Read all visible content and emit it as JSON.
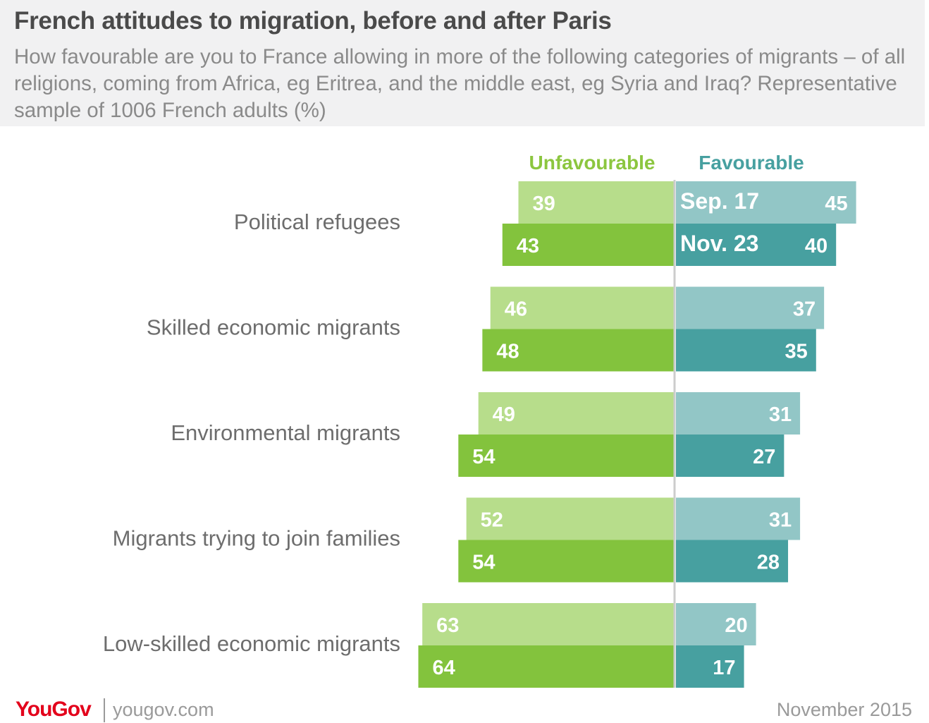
{
  "header": {
    "title": "French attitudes to migration, before and after Paris",
    "subtitle": "How favourable are you to France allowing in more of the following categories of migrants – of all religions, coming from Africa, eg Eritrea, and the middle east, eg Syria and Iraq? Representative sample of 1006 French adults (%)"
  },
  "footer": {
    "brand": "YouGov",
    "url": "yougov.com",
    "date": "November 2015"
  },
  "chart_data": {
    "type": "bar",
    "orientation": "diverging-horizontal",
    "headings": {
      "left": "Unfavourable",
      "right": "Favourable"
    },
    "series_labels": [
      "Sep. 17",
      "Nov. 23"
    ],
    "categories": [
      "Political refugees",
      "Skilled economic migrants",
      "Environmental migrants",
      "Migrants trying to join families",
      "Low-skilled economic migrants"
    ],
    "unfavourable": {
      "sep17": [
        39,
        46,
        49,
        52,
        63
      ],
      "nov23": [
        43,
        48,
        54,
        54,
        64
      ]
    },
    "favourable": {
      "sep17": [
        45,
        37,
        31,
        31,
        20
      ],
      "nov23": [
        40,
        35,
        27,
        28,
        17
      ]
    },
    "colors": {
      "unfav_sep": "#b7dd8b",
      "unfav_nov": "#83c33d",
      "fav_sep": "#92c6c6",
      "fav_nov": "#47a0a0",
      "unfav_heading": "#8cc63f",
      "fav_heading": "#47a0a0",
      "axis": "#cccccc",
      "category_text": "#6d6d6d"
    }
  }
}
